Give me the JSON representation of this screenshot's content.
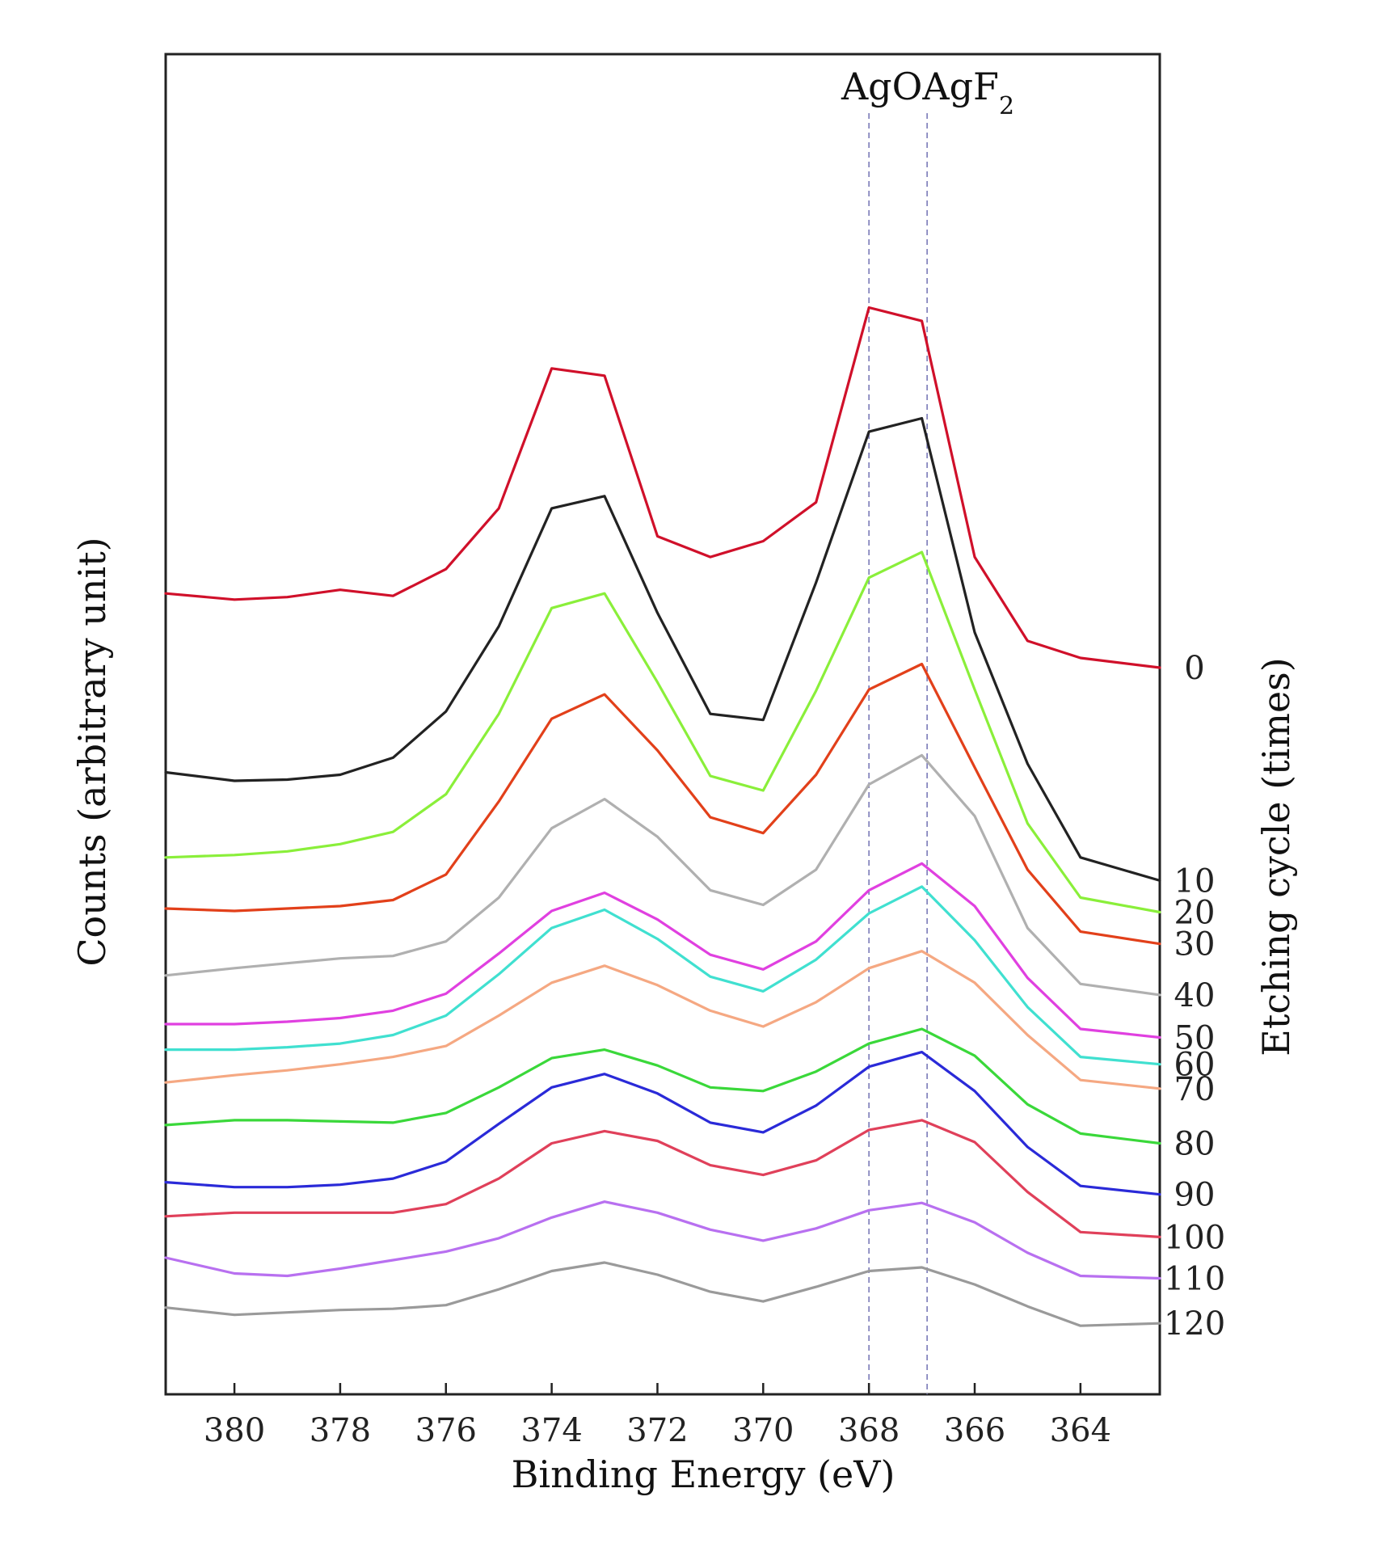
{
  "chart_data": {
    "type": "line",
    "title": "",
    "xlabel": "Binding Energy (eV)",
    "ylabel": "Counts (arbitrary unit)",
    "right_ylabel": "Etching cycle (times)",
    "xlim": [
      381.3,
      362.5
    ],
    "x_ticks": [
      380,
      378,
      376,
      374,
      372,
      370,
      368,
      366,
      364
    ],
    "x_tick_labels": [
      "380",
      "378",
      "376",
      "374",
      "372",
      "370",
      "368",
      "366",
      "364"
    ],
    "ylim": [
      0,
      100
    ],
    "grid": false,
    "annotation": {
      "text": "AgO AgF2",
      "parts": [
        "AgO",
        "AgF",
        "2"
      ]
    },
    "reference_lines": [
      {
        "name": "AgO",
        "x": 368.0
      },
      {
        "name": "AgF2",
        "x": 366.9
      }
    ],
    "x": [
      381.3,
      380,
      379,
      378,
      377,
      376,
      375,
      374,
      373,
      372,
      371,
      370,
      369,
      368,
      367,
      366,
      365,
      364,
      362.5
    ],
    "series": [
      {
        "name": "0",
        "label": "0",
        "color": "#d0102a",
        "values": [
          65.5,
          65.0,
          65.2,
          65.8,
          65.3,
          67.5,
          72.5,
          84.0,
          83.4,
          70.2,
          68.5,
          69.8,
          73.0,
          89.0,
          87.9,
          68.5,
          61.6,
          60.2,
          59.4
        ]
      },
      {
        "name": "10",
        "label": "10",
        "color": "#222222",
        "values": [
          50.8,
          50.1,
          50.2,
          50.6,
          52.0,
          55.8,
          62.8,
          72.5,
          73.5,
          63.9,
          55.6,
          55.1,
          66.4,
          78.8,
          79.9,
          62.3,
          51.5,
          43.8,
          41.9
        ]
      },
      {
        "name": "20",
        "label": "20",
        "color": "#8aef3a",
        "values": [
          43.8,
          44.0,
          44.3,
          44.9,
          45.9,
          49.0,
          55.6,
          64.3,
          65.5,
          58.2,
          50.5,
          49.3,
          57.5,
          66.8,
          68.9,
          57.6,
          46.6,
          40.5,
          39.3
        ]
      },
      {
        "name": "30",
        "label": "30",
        "color": "#e2401a",
        "values": [
          39.6,
          39.4,
          39.6,
          39.8,
          40.3,
          42.4,
          48.4,
          55.2,
          57.2,
          52.6,
          47.1,
          45.8,
          50.6,
          57.6,
          59.7,
          51.2,
          42.8,
          37.7,
          36.7
        ]
      },
      {
        "name": "40",
        "label": "40",
        "color": "#b0b0b0",
        "values": [
          34.1,
          34.7,
          35.1,
          35.5,
          35.7,
          36.9,
          40.5,
          46.2,
          48.6,
          45.5,
          41.1,
          39.9,
          42.8,
          49.8,
          52.2,
          47.2,
          38.0,
          33.4,
          32.5
        ]
      },
      {
        "name": "50",
        "label": "50",
        "color": "#e040e0",
        "values": [
          30.1,
          30.1,
          30.3,
          30.6,
          31.2,
          32.6,
          35.9,
          39.4,
          40.9,
          38.7,
          35.8,
          34.6,
          36.9,
          41.1,
          43.3,
          39.8,
          33.9,
          29.7,
          29.0
        ]
      },
      {
        "name": "60",
        "label": "60",
        "color": "#40e0d0",
        "values": [
          28.0,
          28.0,
          28.2,
          28.5,
          29.2,
          30.8,
          34.2,
          38.0,
          39.5,
          37.1,
          34.0,
          32.8,
          35.4,
          39.2,
          41.4,
          37.0,
          31.5,
          27.4,
          26.8
        ]
      },
      {
        "name": "70",
        "label": "70",
        "color": "#f5a882",
        "values": [
          25.3,
          25.9,
          26.3,
          26.8,
          27.4,
          28.3,
          30.8,
          33.5,
          34.9,
          33.3,
          31.2,
          29.9,
          31.9,
          34.7,
          36.1,
          33.5,
          29.2,
          25.5,
          24.8
        ]
      },
      {
        "name": "80",
        "label": "80",
        "color": "#3ad83a",
        "values": [
          21.8,
          22.2,
          22.2,
          22.1,
          22.0,
          22.8,
          24.9,
          27.3,
          28.0,
          26.7,
          24.9,
          24.6,
          26.2,
          28.5,
          29.7,
          27.5,
          23.5,
          21.1,
          20.3
        ]
      },
      {
        "name": "90",
        "label": "90",
        "color": "#2a2ad8",
        "values": [
          17.1,
          16.7,
          16.7,
          16.9,
          17.4,
          18.8,
          21.9,
          24.9,
          26.0,
          24.4,
          22.0,
          21.2,
          23.4,
          26.6,
          27.8,
          24.6,
          20.0,
          16.8,
          16.1
        ]
      },
      {
        "name": "100",
        "label": "100",
        "color": "#e0405a",
        "values": [
          14.3,
          14.6,
          14.6,
          14.6,
          14.6,
          15.3,
          17.4,
          20.3,
          21.3,
          20.5,
          18.5,
          17.7,
          18.9,
          21.4,
          22.2,
          20.4,
          16.3,
          13.0,
          12.6
        ]
      },
      {
        "name": "110",
        "label": "110",
        "color": "#b870f0",
        "values": [
          10.9,
          9.6,
          9.4,
          10.0,
          10.7,
          11.4,
          12.5,
          14.2,
          15.5,
          14.6,
          13.2,
          12.3,
          13.3,
          14.8,
          15.4,
          13.8,
          11.3,
          9.4,
          9.2
        ]
      },
      {
        "name": "120",
        "label": "120",
        "color": "#9a9a9a",
        "values": [
          6.8,
          6.2,
          6.4,
          6.6,
          6.7,
          7.0,
          8.3,
          9.8,
          10.5,
          9.5,
          8.1,
          7.3,
          8.5,
          9.8,
          10.1,
          8.7,
          6.9,
          5.3,
          5.5
        ]
      }
    ]
  }
}
